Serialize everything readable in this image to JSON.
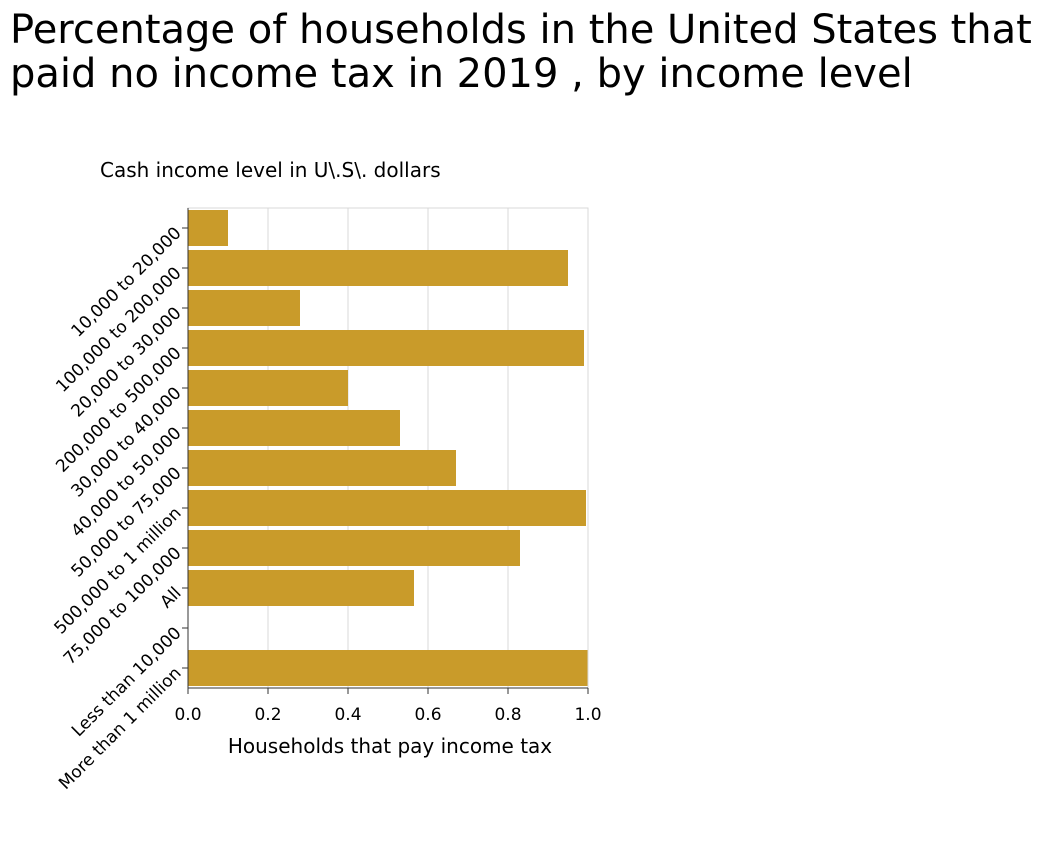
{
  "chart_data": {
    "type": "bar",
    "orientation": "horizontal",
    "title": "Percentage of households in the United States that paid no income tax in 2019 , by income level",
    "ylabel": "Cash income level in U\\.S\\. dollars",
    "xlabel": "Households that pay income tax",
    "categories": [
      "10,000 to 20,000",
      "100,000 to 200,000",
      "20,000 to 30,000",
      "200,000 to 500,000",
      "30,000 to 40,000",
      "40,000 to 50,000",
      "50,000 to 75,000",
      "500,000 to 1 million",
      "75,000 to 100,000",
      "All",
      "Less than 10,000",
      "More than 1 million"
    ],
    "values": [
      0.1,
      0.95,
      0.28,
      0.99,
      0.4,
      0.53,
      0.67,
      0.995,
      0.83,
      0.565,
      0.0,
      1.0
    ],
    "xlim": [
      0,
      1.0
    ],
    "xticks": [
      "0.0",
      "0.2",
      "0.4",
      "0.6",
      "0.8",
      "1.0"
    ],
    "bar_color": "#c99b2a",
    "grid": "vertical",
    "legend": "none"
  }
}
